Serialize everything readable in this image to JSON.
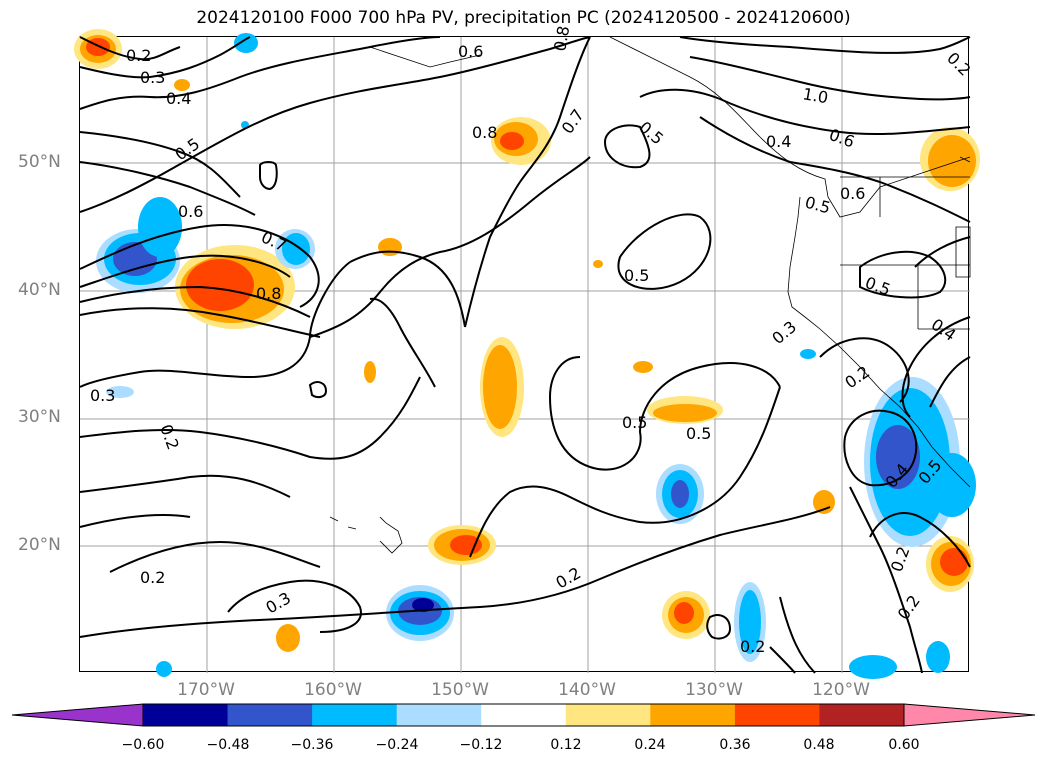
{
  "title": "2024120100 F000 700 hPa PV, precipitation PC (2024120500 - 2024120600)",
  "axes": {
    "lat_labels": [
      "50°N",
      "40°N",
      "30°N",
      "20°N"
    ],
    "lon_labels": [
      "170°W",
      "160°W",
      "150°W",
      "140°W",
      "130°W",
      "120°W"
    ]
  },
  "contour_labels": [
    "0.2",
    "0.3",
    "0.4",
    "0.5",
    "0.6",
    "0.6",
    "0.8",
    "0.7",
    "0.5",
    "1.0",
    "0.6",
    "0.4",
    "0.6",
    "0.5",
    "0.8",
    "0.7",
    "0.8",
    "0.5",
    "0.5",
    "0.4",
    "0.3",
    "0.3",
    "0.2",
    "0.5",
    "0.5",
    "0.2",
    "0.4",
    "0.5",
    "0.2",
    "0.2",
    "0.2",
    "0.3",
    "0.2",
    "0.2",
    "0.2"
  ],
  "colorbar": {
    "colors": [
      "#9933cc",
      "#000099",
      "#3355cc",
      "#00bbff",
      "#aaddff",
      "#ffffff",
      "#ffe680",
      "#ffa500",
      "#ff4400",
      "#b22222",
      "#ff88aa"
    ],
    "tick_labels": [
      "−0.60",
      "−0.48",
      "−0.36",
      "−0.24",
      "−0.12",
      "0.12",
      "0.24",
      "0.36",
      "0.48",
      "0.60"
    ]
  },
  "palette": {
    "pos_light": "#ffe680",
    "pos_mid": "#ffa500",
    "pos_high": "#ff4400",
    "neg_light": "#aaddff",
    "neg_mid": "#00bbff",
    "neg_high": "#3355cc",
    "neg_max": "#000099"
  }
}
